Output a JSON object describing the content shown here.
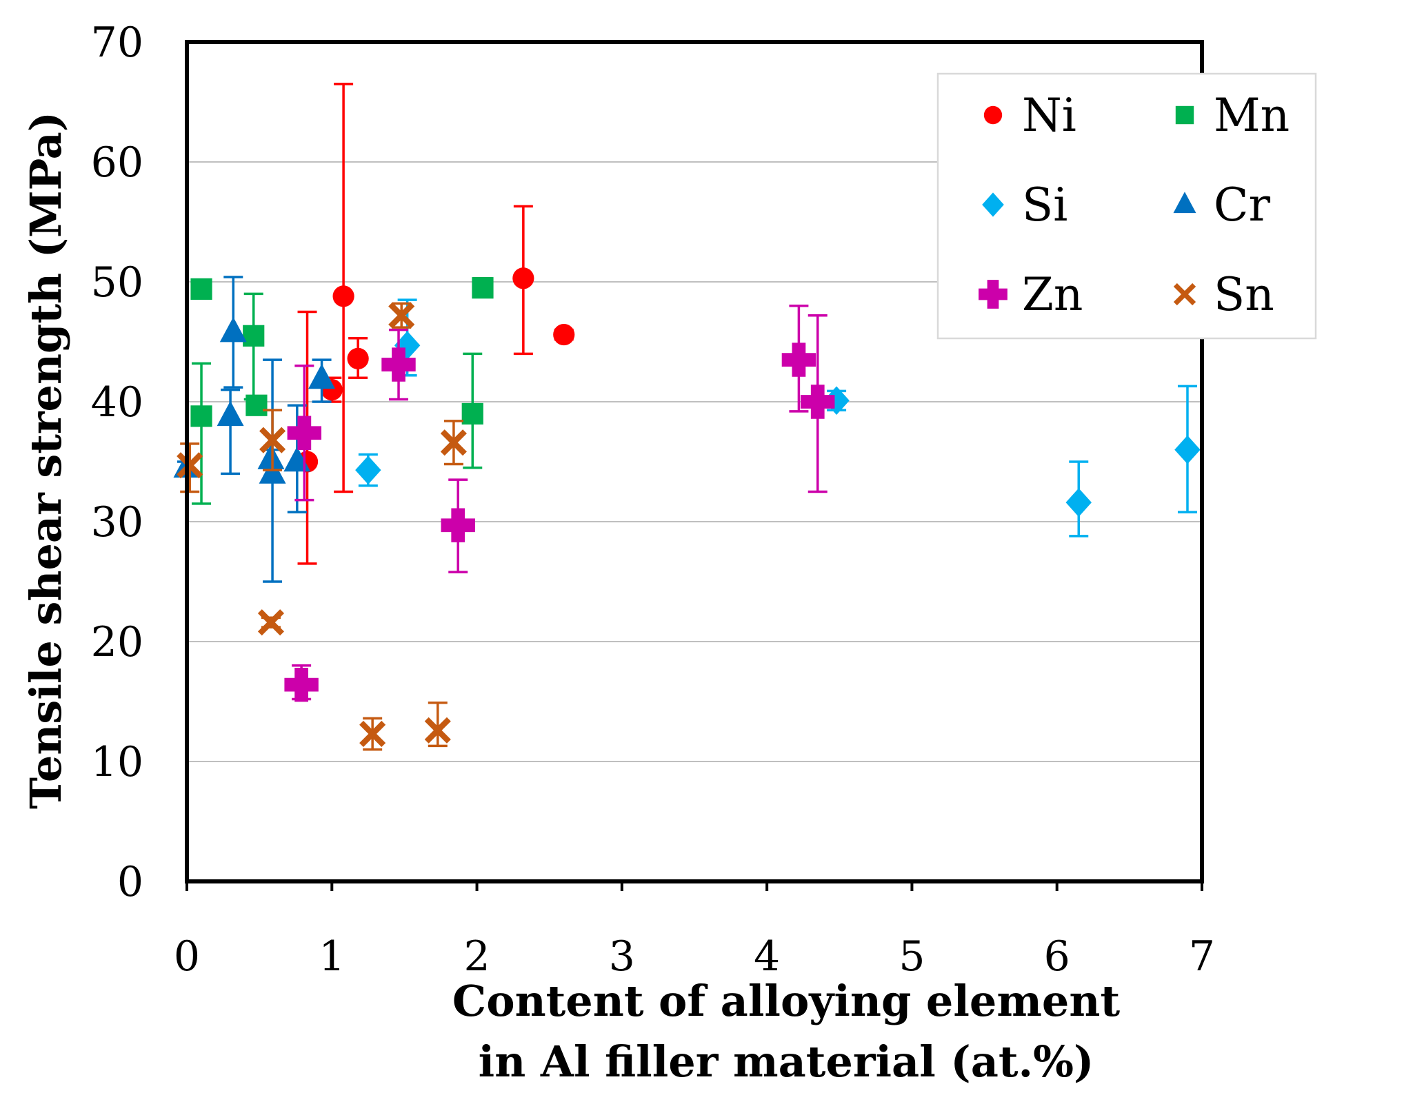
{
  "chart_data": {
    "type": "scatter",
    "xlabel": [
      "Content of alloying element",
      "in Al filler material (at.%)"
    ],
    "ylabel": "Tensile shear strength (MPa)",
    "xlim": [
      0,
      7
    ],
    "ylim": [
      0,
      70
    ],
    "xticks": [
      "0",
      "1",
      "2",
      "3",
      "4",
      "5",
      "6",
      "7"
    ],
    "yticks": [
      "0",
      "10",
      "20",
      "30",
      "40",
      "50",
      "60",
      "70"
    ],
    "grid": "horizontal",
    "legend_position": "top-right",
    "series": [
      {
        "name": "Ni",
        "color": "#ff0000",
        "marker": "circle",
        "points": [
          {
            "x": 0.83,
            "y": 35.0,
            "low": 26.5,
            "high": 47.5
          },
          {
            "x": 1.0,
            "y": 41.0,
            "low": 40.0,
            "high": 42.0
          },
          {
            "x": 1.08,
            "y": 48.8,
            "low": 32.5,
            "high": 66.5
          },
          {
            "x": 1.18,
            "y": 43.6,
            "low": 42.0,
            "high": 45.3
          },
          {
            "x": 2.32,
            "y": 50.3,
            "low": 44.0,
            "high": 56.3
          },
          {
            "x": 2.6,
            "y": 45.6,
            "low": 45.2,
            "high": 46.0
          }
        ]
      },
      {
        "name": "Mn",
        "color": "#00b050",
        "marker": "square",
        "points": [
          {
            "x": 0.1,
            "y": 49.4,
            "low": 48.8,
            "high": 50.0
          },
          {
            "x": 0.1,
            "y": 38.8,
            "low": 31.5,
            "high": 43.2
          },
          {
            "x": 0.46,
            "y": 45.5,
            "low": 40.2,
            "high": 49.0
          },
          {
            "x": 0.48,
            "y": 39.7,
            "low": 39.0,
            "high": 40.4
          },
          {
            "x": 1.97,
            "y": 39.0,
            "low": 34.5,
            "high": 44.0
          },
          {
            "x": 2.04,
            "y": 49.5,
            "low": 48.8,
            "high": 50.3
          }
        ]
      },
      {
        "name": "Si",
        "color": "#00b0f0",
        "marker": "diamond",
        "points": [
          {
            "x": 1.25,
            "y": 34.3,
            "low": 33.0,
            "high": 35.6
          },
          {
            "x": 1.52,
            "y": 44.7,
            "low": 42.2,
            "high": 48.5
          },
          {
            "x": 4.48,
            "y": 40.1,
            "low": 39.3,
            "high": 40.9
          },
          {
            "x": 6.15,
            "y": 31.6,
            "low": 28.8,
            "high": 35.0
          },
          {
            "x": 6.9,
            "y": 36.0,
            "low": 30.8,
            "high": 41.3
          }
        ]
      },
      {
        "name": "Cr",
        "color": "#0070c0",
        "marker": "triangle",
        "points": [
          {
            "x": 0.0,
            "y": 34.5,
            "low": 34.0,
            "high": 35.0
          },
          {
            "x": 0.3,
            "y": 38.8,
            "low": 34.0,
            "high": 41.0
          },
          {
            "x": 0.32,
            "y": 45.8,
            "low": 41.2,
            "high": 50.4
          },
          {
            "x": 0.58,
            "y": 35.2,
            "low": 34.5,
            "high": 36.0
          },
          {
            "x": 0.59,
            "y": 34.0,
            "low": 25.0,
            "high": 43.5
          },
          {
            "x": 0.76,
            "y": 35.0,
            "low": 30.8,
            "high": 39.7
          },
          {
            "x": 0.93,
            "y": 41.9,
            "low": 40.0,
            "high": 43.5
          }
        ]
      },
      {
        "name": "Zn",
        "color": "#cc00aa",
        "marker": "plus",
        "points": [
          {
            "x": 0.79,
            "y": 16.4,
            "low": 15.2,
            "high": 18.0
          },
          {
            "x": 0.81,
            "y": 37.4,
            "low": 31.8,
            "high": 43.0
          },
          {
            "x": 1.46,
            "y": 43.1,
            "low": 40.2,
            "high": 46.0
          },
          {
            "x": 1.87,
            "y": 29.7,
            "low": 25.8,
            "high": 33.5
          },
          {
            "x": 4.22,
            "y": 43.5,
            "low": 39.2,
            "high": 48.0
          },
          {
            "x": 4.35,
            "y": 40.0,
            "low": 32.5,
            "high": 47.2
          }
        ]
      },
      {
        "name": "Sn",
        "color": "#c55a11",
        "marker": "x",
        "points": [
          {
            "x": 0.02,
            "y": 34.7,
            "low": 32.5,
            "high": 36.5
          },
          {
            "x": 0.58,
            "y": 21.6,
            "low": 21.2,
            "high": 22.0
          },
          {
            "x": 0.59,
            "y": 36.8,
            "low": 34.3,
            "high": 39.3
          },
          {
            "x": 1.28,
            "y": 12.3,
            "low": 11.0,
            "high": 13.6
          },
          {
            "x": 1.48,
            "y": 47.2,
            "low": 46.2,
            "high": 48.2
          },
          {
            "x": 1.73,
            "y": 12.6,
            "low": 11.3,
            "high": 14.9
          },
          {
            "x": 1.84,
            "y": 36.6,
            "low": 34.8,
            "high": 38.4
          }
        ]
      }
    ]
  }
}
